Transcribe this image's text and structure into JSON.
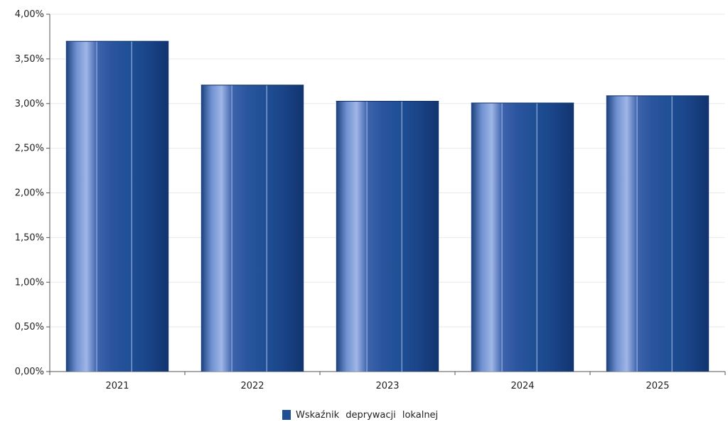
{
  "chart_data": {
    "type": "bar",
    "categories": [
      "2021",
      "2022",
      "2023",
      "2024",
      "2025"
    ],
    "series": [
      {
        "name": "Wskaźnik deprywacji lokalnej",
        "values": [
          3.7,
          3.21,
          3.03,
          3.01,
          3.09
        ],
        "color": "#1f4f95"
      }
    ],
    "y_ticks": [
      "0,00%",
      "0,50%",
      "1,00%",
      "1,50%",
      "2,00%",
      "2,50%",
      "3,00%",
      "3,50%",
      "4,00%"
    ],
    "ylim": [
      0,
      4
    ],
    "y_step": 0.5,
    "grid": true,
    "legend": {
      "position": "bottom-center"
    }
  }
}
